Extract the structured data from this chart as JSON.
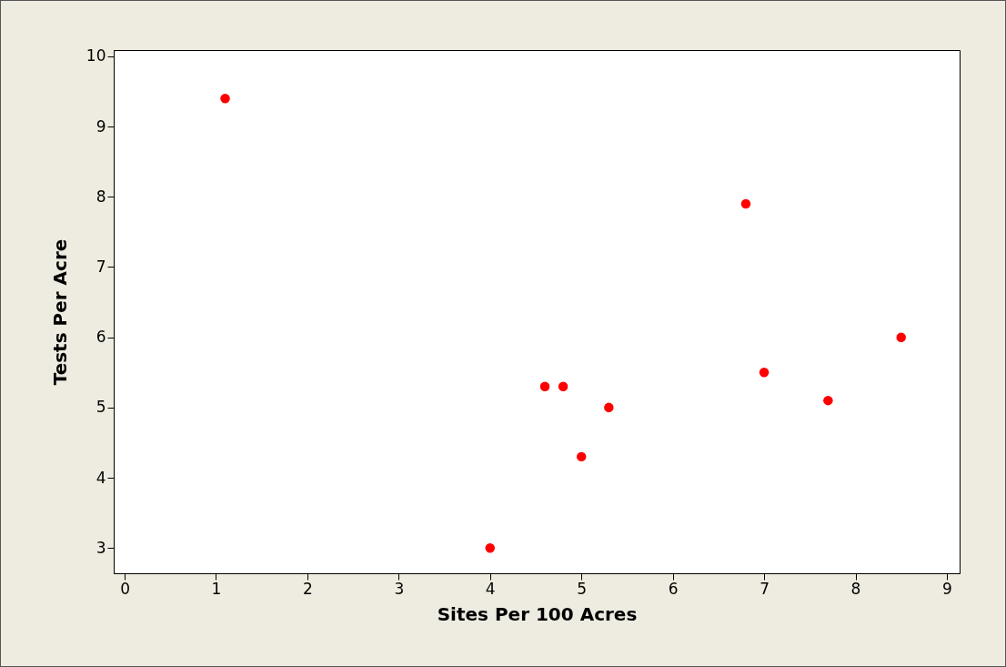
{
  "chart_data": {
    "type": "scatter",
    "xlabel": "Sites Per 100 Acres",
    "ylabel": "Tests Per Acre",
    "x": [
      1.1,
      4,
      4.6,
      4.8,
      5,
      5.3,
      6.8,
      7,
      7.7,
      8.5
    ],
    "series": [
      {
        "color": "#ff0000",
        "values": [
          9.4,
          3,
          5.3,
          5.3,
          4.3,
          5,
          7.9,
          5.5,
          5.1,
          6
        ]
      }
    ],
    "xlim": [
      -0.12,
      9.14
    ],
    "xticks": [
      0,
      1,
      2,
      3,
      4,
      5,
      6,
      7,
      8,
      9
    ],
    "ylim": [
      2.64,
      10.09
    ],
    "yticks": [
      3,
      4,
      5,
      6,
      7,
      8,
      9,
      10
    ],
    "grid": false,
    "legend": false,
    "marker": "circle"
  }
}
